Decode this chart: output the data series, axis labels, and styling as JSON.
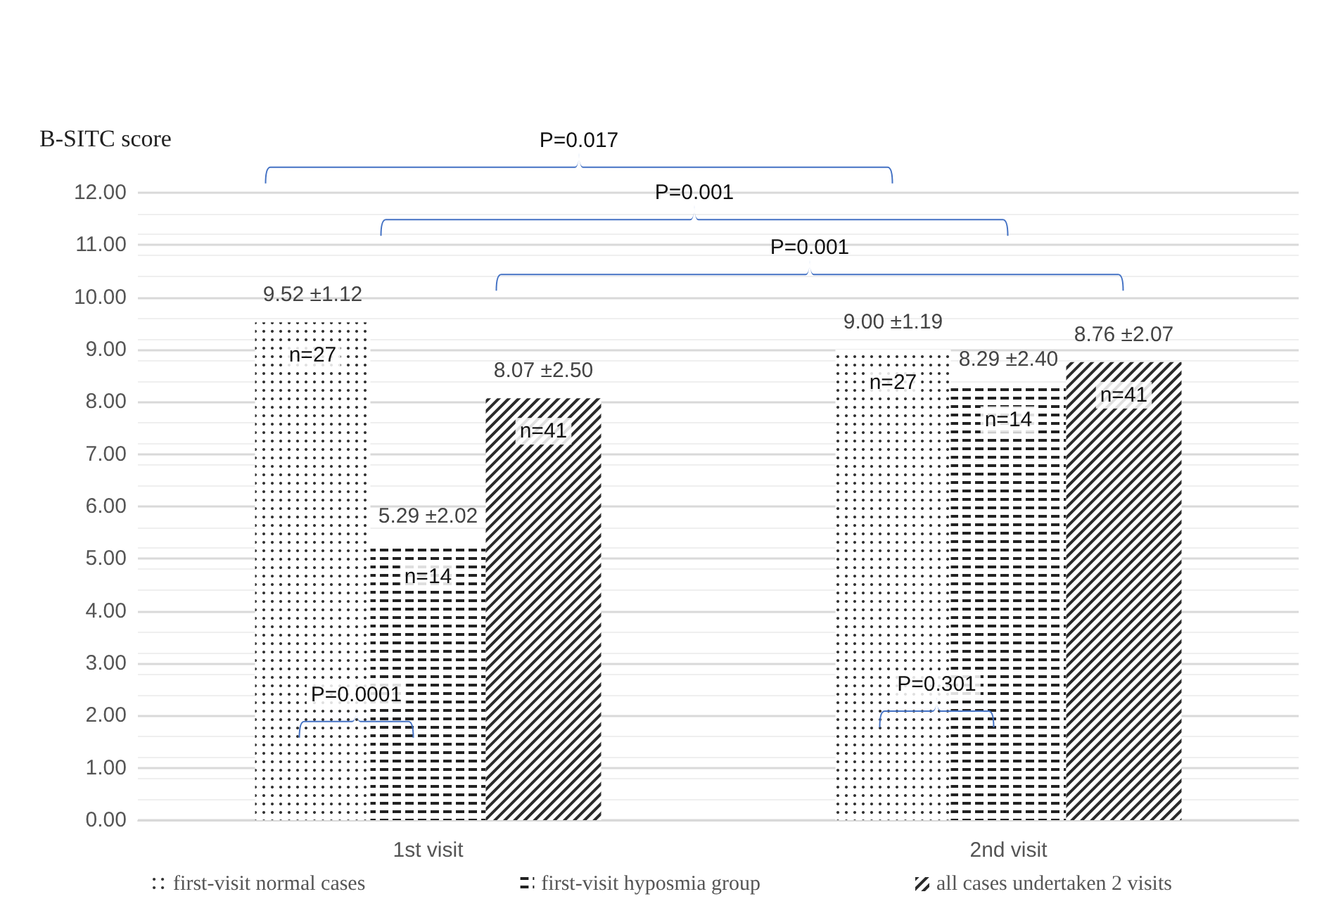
{
  "chart_data": {
    "type": "bar",
    "ylabel": "B-SITC score",
    "categories": [
      "1st visit",
      "2nd visit"
    ],
    "series": [
      {
        "name": "first-visit normal cases",
        "color": "#333333",
        "values": [
          9.52,
          9.0
        ],
        "value_labels": [
          "9.52 ±1.12",
          "9.00 ±1.19"
        ]
      },
      {
        "name": "first-visit hyposmia group",
        "color": "#222222",
        "values": [
          5.29,
          8.29
        ],
        "value_labels": [
          "5.29 ±2.02",
          "8.29 ±2.40"
        ]
      },
      {
        "name": "all cases undertaken 2 visits",
        "color": "#2a2a2a",
        "values": [
          8.07,
          8.76
        ],
        "value_labels": [
          "8.07 ±2.50",
          "8.76 ±2.07"
        ]
      }
    ],
    "ylim": [
      0,
      12
    ],
    "yticks": [
      {
        "value": 0,
        "label": "0.00"
      },
      {
        "value": 1,
        "label": "1.00"
      },
      {
        "value": 2,
        "label": "2.00"
      },
      {
        "value": 3,
        "label": "3.00"
      },
      {
        "value": 4,
        "label": "4.00"
      },
      {
        "value": 5,
        "label": "5.00"
      },
      {
        "value": 6,
        "label": "6.00"
      },
      {
        "value": 7,
        "label": "7.00"
      },
      {
        "value": 8,
        "label": "8.00"
      },
      {
        "value": 9,
        "label": "9.00"
      },
      {
        "value": 10,
        "label": "10.00"
      },
      {
        "value": 11,
        "label": "11.00"
      },
      {
        "value": 12,
        "label": "12.00"
      }
    ],
    "grid": "y",
    "legend": "bottom",
    "annotations": [
      "P=0.017",
      "P=0.001",
      "P=0.001",
      "P=0.0001",
      "P=0.301",
      "n=27",
      "n=14",
      "n=41",
      "n=27",
      "n=14",
      "n=41"
    ]
  }
}
